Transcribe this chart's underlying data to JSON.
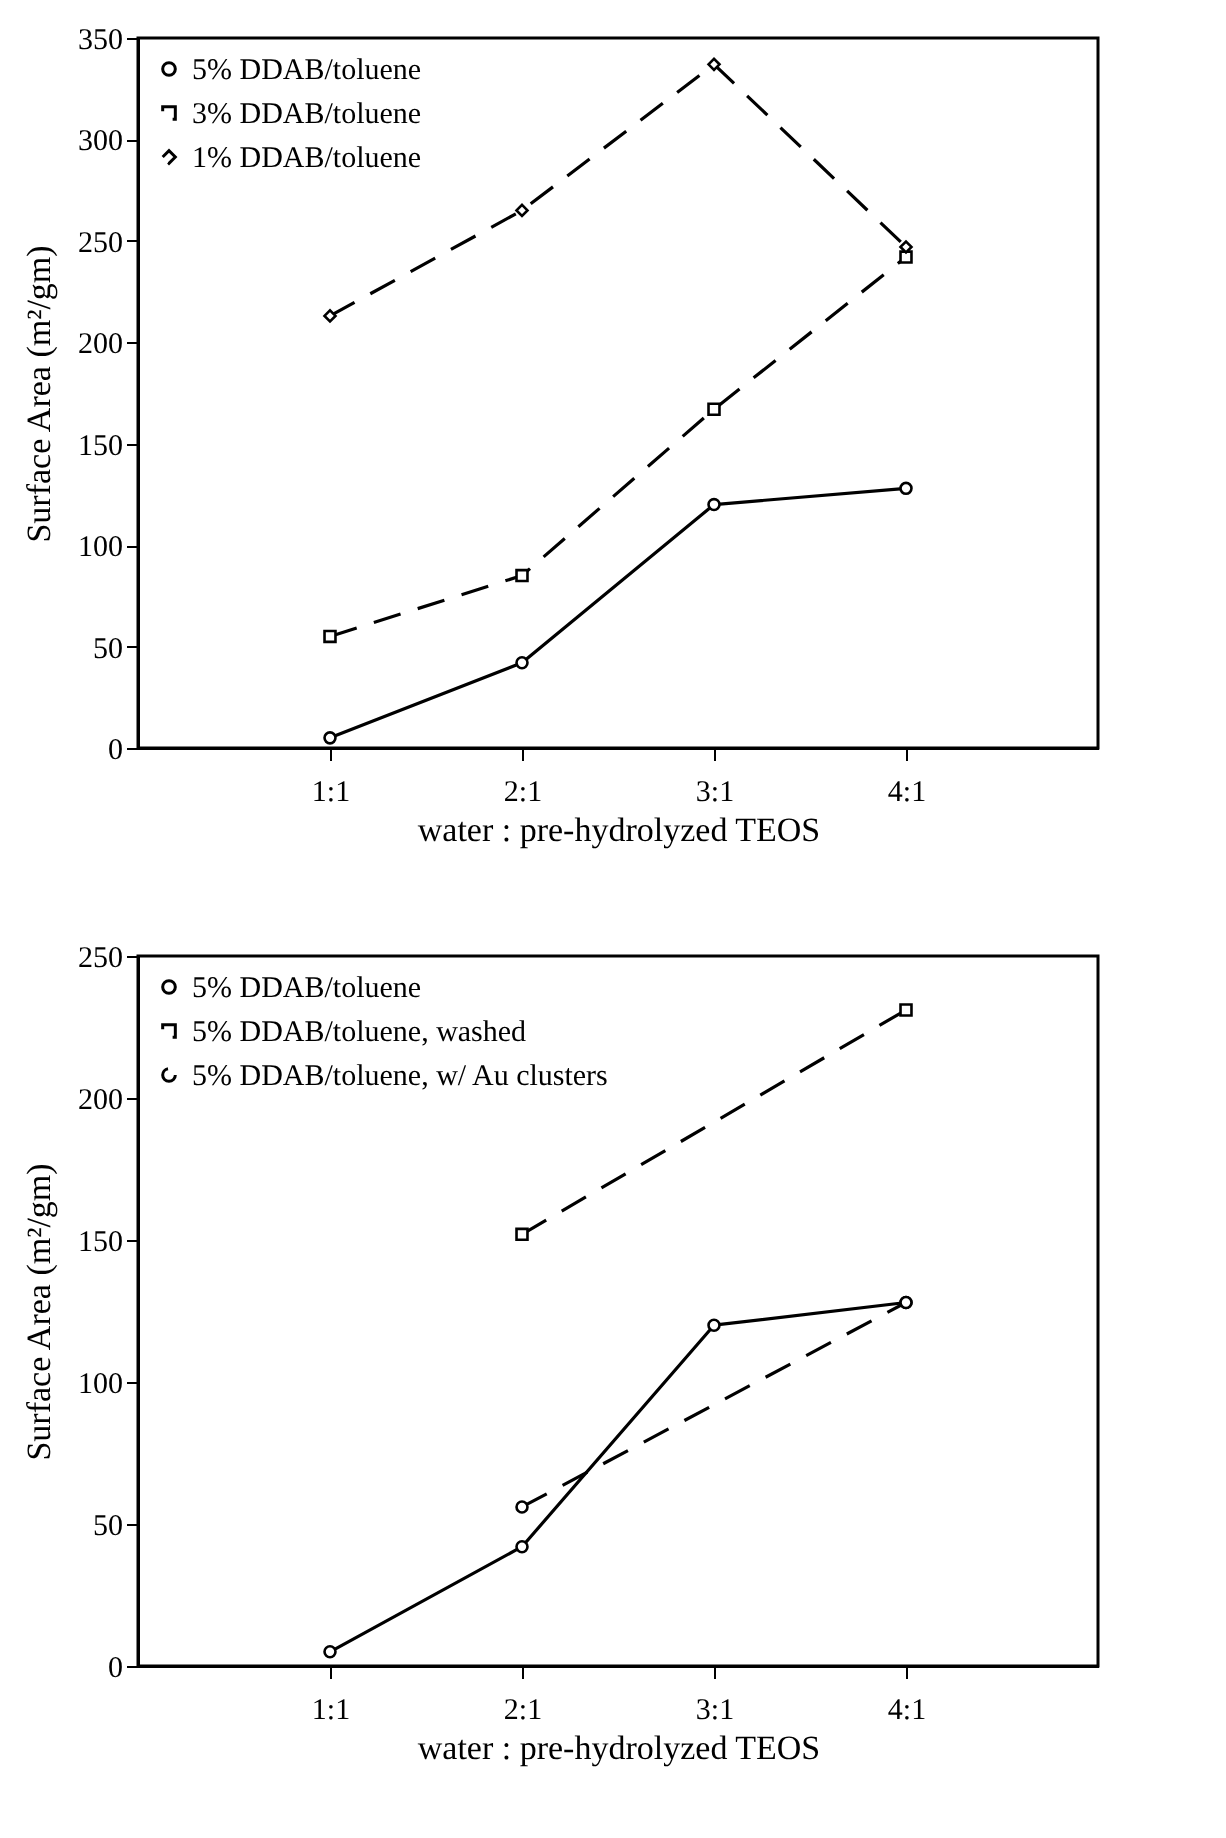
{
  "chart_data": [
    {
      "type": "line",
      "xlabel": "water : pre-hydrolyzed TEOS",
      "ylabel": "Surface Area (m²/gm)",
      "categories": [
        "1:1",
        "2:1",
        "3:1",
        "4:1"
      ],
      "ylim": [
        0,
        350
      ],
      "yticks": [
        0,
        50,
        100,
        150,
        200,
        250,
        300,
        350
      ],
      "grid": false,
      "legend": "top left",
      "series": [
        {
          "name": "5% DDAB/toluene",
          "color": "#000000",
          "values": [
            5,
            42,
            120,
            128
          ],
          "marker": "circle",
          "line_style": "solid"
        },
        {
          "name": "3% DDAB/toluene",
          "color": "#000000",
          "values": [
            55,
            85,
            167,
            242
          ],
          "marker": "square",
          "line_style": "dashed"
        },
        {
          "name": "1% DDAB/toluene",
          "color": "#000000",
          "values": [
            213,
            265,
            337,
            247
          ],
          "marker": "diamond",
          "line_style": "dashed"
        }
      ]
    },
    {
      "type": "line",
      "xlabel": "water : pre-hydrolyzed TEOS",
      "ylabel": "Surface Area (m²/gm)",
      "categories": [
        "1:1",
        "2:1",
        "3:1",
        "4:1"
      ],
      "ylim": [
        0,
        250
      ],
      "yticks": [
        0,
        50,
        100,
        150,
        200,
        250
      ],
      "grid": false,
      "legend": "top left",
      "series": [
        {
          "name": "5% DDAB/toluene",
          "color": "#000000",
          "values": [
            5,
            42,
            120,
            128
          ],
          "marker": "circle",
          "line_style": "solid"
        },
        {
          "name": "5% DDAB/toluene, washed",
          "color": "#000000",
          "values": [
            null,
            152,
            null,
            231
          ],
          "marker": "square",
          "line_style": "dashed"
        },
        {
          "name": "5% DDAB/toluene, w/ Au clusters",
          "color": "#000000",
          "values": [
            null,
            56,
            null,
            128
          ],
          "marker": "circle",
          "line_style": "dashed"
        }
      ]
    }
  ]
}
